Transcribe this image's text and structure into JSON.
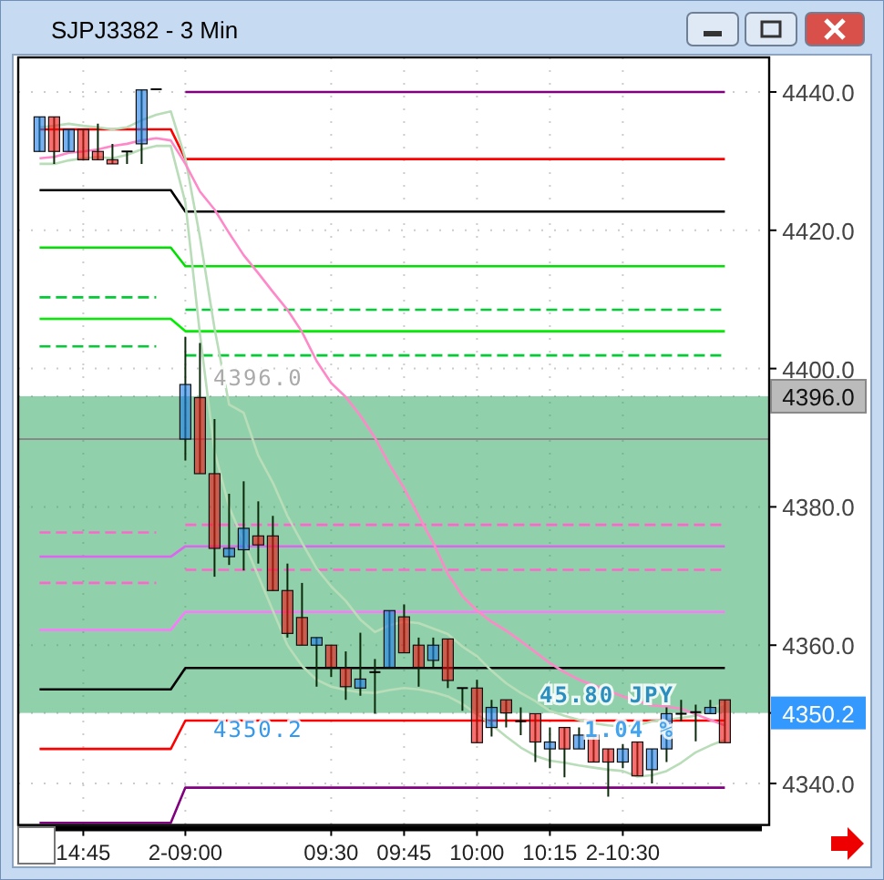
{
  "chart_data": {
    "type": "candlestick",
    "title": "SJPJ3382 - 3 Min",
    "categories": [
      null,
      null,
      null,
      "14:45",
      null,
      null,
      null,
      null,
      null,
      null,
      "2-09:00",
      null,
      null,
      null,
      null,
      null,
      null,
      null,
      null,
      null,
      "09:30",
      null,
      null,
      null,
      null,
      "09:45",
      null,
      null,
      null,
      null,
      "10:00",
      null,
      null,
      null,
      null,
      "10:15",
      null,
      null,
      null,
      null,
      "2-10:30",
      null,
      null,
      null,
      null,
      null,
      null,
      null
    ],
    "ohlc": [
      [
        4431.4,
        4436.4,
        4431.4,
        4436.4
      ],
      [
        4436.4,
        4436.4,
        4429.6,
        4431.4
      ],
      [
        4431.4,
        4434.6,
        4431.4,
        4434.6
      ],
      [
        4434.6,
        4434.6,
        4430.2,
        4430.2
      ],
      [
        4431.4,
        4435.4,
        4430.2,
        4430.2
      ],
      [
        4430.2,
        4432.5,
        4429.6,
        4429.6
      ],
      [
        4431.4,
        4431.4,
        4429.6,
        4431.4
      ],
      [
        4432.5,
        4440.3,
        4429.6,
        4440.3
      ],
      [
        4440.4,
        4440.4,
        4440.4,
        4440.4
      ],
      null,
      [
        4389.8,
        4404.6,
        4386.7,
        4397.7
      ],
      [
        4395.8,
        4403.7,
        4384.8,
        4384.8
      ],
      [
        4384.8,
        4392.7,
        4369.9,
        4374.0
      ],
      [
        4372.8,
        4381.9,
        4371.6,
        4374.0
      ],
      [
        4373.8,
        4383.7,
        4370.8,
        4376.9
      ],
      [
        4375.8,
        4380.8,
        4371.8,
        4374.5
      ],
      [
        4375.8,
        4378.7,
        4367.9,
        4367.9
      ],
      [
        4367.9,
        4371.8,
        4361.1,
        4361.7
      ],
      [
        4364.0,
        4369.0,
        4360.0,
        4360.0
      ],
      [
        4360.0,
        4361.1,
        4354.0,
        4361.1
      ],
      [
        4360.0,
        4360.0,
        4355.4,
        4356.8
      ],
      [
        4356.7,
        4359.1,
        4352.1,
        4354.0
      ],
      [
        4353.8,
        4361.8,
        4352.7,
        4355.1
      ],
      [
        4356.1,
        4358.0,
        4350.1,
        4356.1
      ],
      [
        4356.8,
        4365.0,
        4356.8,
        4365.0
      ],
      [
        4364.1,
        4365.9,
        4358.9,
        4358.9
      ],
      [
        4360.0,
        4361.1,
        4354.0,
        4356.8
      ],
      [
        4357.8,
        4361.1,
        4356.8,
        4360.0
      ],
      [
        4360.9,
        4360.9,
        4353.8,
        4354.9
      ],
      [
        4353.8,
        4353.8,
        4350.5,
        4353.8
      ],
      [
        4353.8,
        4355.0,
        4345.9,
        4345.9
      ],
      [
        4348.1,
        4352.1,
        4346.8,
        4351.0
      ],
      [
        4352.1,
        4352.1,
        4348.1,
        4350.2
      ],
      [
        4349.0,
        4351.0,
        4347.0,
        4349.0
      ],
      [
        4350.1,
        4350.1,
        4343.1,
        4346.0
      ],
      [
        4345.0,
        4348.1,
        4342.2,
        4346.0
      ],
      [
        4348.1,
        4348.1,
        4340.9,
        4345.0
      ],
      [
        4345.0,
        4348.1,
        4345.0,
        4347.0
      ],
      [
        4347.0,
        4347.0,
        4343.1,
        4343.1
      ],
      [
        4345.0,
        4345.0,
        4338.1,
        4343.1
      ],
      [
        4343.1,
        4345.7,
        4342.2,
        4345.0
      ],
      [
        4346.0,
        4346.0,
        4341.1,
        4341.1
      ],
      [
        4342.0,
        4345.0,
        4340.0,
        4345.0
      ],
      [
        4345.0,
        4351.0,
        4343.1,
        4350.1
      ],
      [
        4350.1,
        4352.1,
        4349.0,
        4350.1
      ],
      [
        4350.3,
        4351.4,
        4346.1,
        4350.3
      ],
      [
        4350.1,
        4352.1,
        4350.1,
        4351.0
      ],
      [
        4352.1,
        4352.1,
        4345.9,
        4345.9
      ]
    ],
    "series": [
      {
        "type": "line",
        "color": "#800080",
        "values": [
          null,
          null,
          null,
          null,
          null,
          null,
          null,
          null,
          null,
          null,
          4440.0,
          4440.0,
          4440.0,
          4440.0,
          4440.0,
          4440.0,
          4440.0,
          4440.0,
          4440.0,
          4440.0,
          4440.0,
          4440.0,
          4440.0,
          4440.0,
          4440.0,
          4440.0,
          4440.0,
          4440.0,
          4440.0,
          4440.0,
          4440.0,
          4440.0,
          4440.0,
          4440.0,
          4440.0,
          4440.0,
          4440.0,
          4440.0,
          4440.0,
          4440.0,
          4440.0,
          4440.0,
          4440.0,
          4440.0,
          4440.0,
          4440.0,
          4440.0,
          4440.0
        ]
      },
      {
        "type": "line",
        "color": "#ff0000",
        "values": [
          4434.6,
          4434.6,
          4434.6,
          4434.6,
          4434.6,
          4434.6,
          4434.6,
          4434.6,
          4434.6,
          4434.6,
          4430.3,
          4430.3,
          4430.3,
          4430.3,
          4430.3,
          4430.3,
          4430.3,
          4430.3,
          4430.3,
          4430.3,
          4430.3,
          4430.3,
          4430.3,
          4430.3,
          4430.3,
          4430.3,
          4430.3,
          4430.3,
          4430.3,
          4430.3,
          4430.3,
          4430.3,
          4430.3,
          4430.3,
          4430.3,
          4430.3,
          4430.3,
          4430.3,
          4430.3,
          4430.3,
          4430.3,
          4430.3,
          4430.3,
          4430.3,
          4430.3,
          4430.3,
          4430.3,
          4430.3
        ]
      },
      {
        "type": "line",
        "color": "#000000",
        "values": [
          4425.8,
          4425.8,
          4425.8,
          4425.8,
          4425.8,
          4425.8,
          4425.8,
          4425.8,
          4425.8,
          4425.8,
          4422.7,
          4422.7,
          4422.7,
          4422.7,
          4422.7,
          4422.7,
          4422.7,
          4422.7,
          4422.7,
          4422.7,
          4422.7,
          4422.7,
          4422.7,
          4422.7,
          4422.7,
          4422.7,
          4422.7,
          4422.7,
          4422.7,
          4422.7,
          4422.7,
          4422.7,
          4422.7,
          4422.7,
          4422.7,
          4422.7,
          4422.7,
          4422.7,
          4422.7,
          4422.7,
          4422.7,
          4422.7,
          4422.7,
          4422.7,
          4422.7,
          4422.7,
          4422.7,
          4422.7
        ]
      },
      {
        "type": "line",
        "color": "#00e000",
        "values": [
          4417.5,
          4417.5,
          4417.5,
          4417.5,
          4417.5,
          4417.5,
          4417.5,
          4417.5,
          4417.5,
          4417.5,
          4414.8,
          4414.8,
          4414.8,
          4414.8,
          4414.8,
          4414.8,
          4414.8,
          4414.8,
          4414.8,
          4414.8,
          4414.8,
          4414.8,
          4414.8,
          4414.8,
          4414.8,
          4414.8,
          4414.8,
          4414.8,
          4414.8,
          4414.8,
          4414.8,
          4414.8,
          4414.8,
          4414.8,
          4414.8,
          4414.8,
          4414.8,
          4414.8,
          4414.8,
          4414.8,
          4414.8,
          4414.8,
          4414.8,
          4414.8,
          4414.8,
          4414.8,
          4414.8,
          4414.8
        ]
      },
      {
        "type": "line",
        "color": "#00cc33",
        "line_style": "dashed",
        "values": [
          4410.3,
          4410.3,
          4410.3,
          4410.3,
          4410.3,
          4410.3,
          4410.3,
          4410.3,
          4410.3,
          null,
          4408.5,
          4408.5,
          4408.5,
          4408.5,
          4408.5,
          4408.5,
          4408.5,
          4408.5,
          4408.5,
          4408.5,
          4408.5,
          4408.5,
          4408.5,
          4408.5,
          4408.5,
          4408.5,
          4408.5,
          4408.5,
          4408.5,
          4408.5,
          4408.5,
          4408.5,
          4408.5,
          4408.5,
          4408.5,
          4408.5,
          4408.5,
          4408.5,
          4408.5,
          4408.5,
          4408.5,
          4408.5,
          4408.5,
          4408.5,
          4408.5,
          4408.5,
          4408.5,
          4408.5
        ]
      },
      {
        "type": "line",
        "color": "#00ee00",
        "values": [
          4407.2,
          4407.2,
          4407.2,
          4407.2,
          4407.2,
          4407.2,
          4407.2,
          4407.2,
          4407.2,
          4407.2,
          4405.4,
          4405.4,
          4405.4,
          4405.4,
          4405.4,
          4405.4,
          4405.4,
          4405.4,
          4405.4,
          4405.4,
          4405.4,
          4405.4,
          4405.4,
          4405.4,
          4405.4,
          4405.4,
          4405.4,
          4405.4,
          4405.4,
          4405.4,
          4405.4,
          4405.4,
          4405.4,
          4405.4,
          4405.4,
          4405.4,
          4405.4,
          4405.4,
          4405.4,
          4405.4,
          4405.4,
          4405.4,
          4405.4,
          4405.4,
          4405.4,
          4405.4,
          4405.4,
          4405.4
        ]
      },
      {
        "type": "line",
        "color": "#00cc33",
        "line_style": "dashed",
        "values": [
          4403.2,
          4403.2,
          4403.2,
          4403.2,
          4403.2,
          4403.2,
          4403.2,
          4403.2,
          4403.2,
          null,
          4401.9,
          4401.9,
          4401.9,
          4401.9,
          4401.9,
          4401.9,
          4401.9,
          4401.9,
          4401.9,
          4401.9,
          4401.9,
          4401.9,
          4401.9,
          4401.9,
          4401.9,
          4401.9,
          4401.9,
          4401.9,
          4401.9,
          4401.9,
          4401.9,
          4401.9,
          4401.9,
          4401.9,
          4401.9,
          4401.9,
          4401.9,
          4401.9,
          4401.9,
          4401.9,
          4401.9,
          4401.9,
          4401.9,
          4401.9,
          4401.9,
          4401.9,
          4401.9,
          4401.9
        ]
      },
      {
        "type": "line",
        "color": "#ff66cc",
        "line_style": "dashed",
        "values": [
          4376.3,
          4376.3,
          4376.3,
          4376.3,
          4376.3,
          4376.3,
          4376.3,
          4376.3,
          4376.3,
          null,
          4377.4,
          4377.4,
          4377.4,
          4377.4,
          4377.4,
          4377.4,
          4377.4,
          4377.4,
          4377.4,
          4377.4,
          4377.4,
          4377.4,
          4377.4,
          4377.4,
          4377.4,
          4377.4,
          4377.4,
          4377.4,
          4377.4,
          4377.4,
          4377.4,
          4377.4,
          4377.4,
          4377.4,
          4377.4,
          4377.4,
          4377.4,
          4377.4,
          4377.4,
          4377.4,
          4377.4,
          4377.4,
          4377.4,
          4377.4,
          4377.4,
          4377.4,
          4377.4,
          4377.4
        ]
      },
      {
        "type": "line",
        "color": "#dd66ee",
        "values": [
          4372.8,
          4372.8,
          4372.8,
          4372.8,
          4372.8,
          4372.8,
          4372.8,
          4372.8,
          4372.8,
          4372.8,
          4374.3,
          4374.3,
          4374.3,
          4374.3,
          4374.3,
          4374.3,
          4374.3,
          4374.3,
          4374.3,
          4374.3,
          4374.3,
          4374.3,
          4374.3,
          4374.3,
          4374.3,
          4374.3,
          4374.3,
          4374.3,
          4374.3,
          4374.3,
          4374.3,
          4374.3,
          4374.3,
          4374.3,
          4374.3,
          4374.3,
          4374.3,
          4374.3,
          4374.3,
          4374.3,
          4374.3,
          4374.3,
          4374.3,
          4374.3,
          4374.3,
          4374.3,
          4374.3,
          4374.3
        ]
      },
      {
        "type": "line",
        "color": "#ff66cc",
        "line_style": "dashed",
        "values": [
          4369.0,
          4369.0,
          4369.0,
          4369.0,
          4369.0,
          4369.0,
          4369.0,
          4369.0,
          4369.0,
          null,
          4370.9,
          4370.9,
          4370.9,
          4370.9,
          4370.9,
          4370.9,
          4370.9,
          4370.9,
          4370.9,
          4370.9,
          4370.9,
          4370.9,
          4370.9,
          4370.9,
          4370.9,
          4370.9,
          4370.9,
          4370.9,
          4370.9,
          4370.9,
          4370.9,
          4370.9,
          4370.9,
          4370.9,
          4370.9,
          4370.9,
          4370.9,
          4370.9,
          4370.9,
          4370.9,
          4370.9,
          4370.9,
          4370.9,
          4370.9,
          4370.9,
          4370.9,
          4370.9,
          4370.9
        ]
      },
      {
        "type": "line",
        "color": "#ff77ff",
        "values": [
          4362.2,
          4362.2,
          4362.2,
          4362.2,
          4362.2,
          4362.2,
          4362.2,
          4362.2,
          4362.2,
          4362.2,
          4364.8,
          4364.8,
          4364.8,
          4364.8,
          4364.8,
          4364.8,
          4364.8,
          4364.8,
          4364.8,
          4364.8,
          4364.8,
          4364.8,
          4364.8,
          4364.8,
          4364.8,
          4364.8,
          4364.8,
          4364.8,
          4364.8,
          4364.8,
          4364.8,
          4364.8,
          4364.8,
          4364.8,
          4364.8,
          4364.8,
          4364.8,
          4364.8,
          4364.8,
          4364.8,
          4364.8,
          4364.8,
          4364.8,
          4364.8,
          4364.8,
          4364.8,
          4364.8,
          4364.8
        ]
      },
      {
        "type": "line",
        "color": "#000000",
        "values": [
          4353.6,
          4353.6,
          4353.6,
          4353.6,
          4353.6,
          4353.6,
          4353.6,
          4353.6,
          4353.6,
          4353.6,
          4356.7,
          4356.7,
          4356.7,
          4356.7,
          4356.7,
          4356.7,
          4356.7,
          4356.7,
          4356.7,
          4356.7,
          4356.7,
          4356.7,
          4356.7,
          4356.7,
          4356.7,
          4356.7,
          4356.7,
          4356.7,
          4356.7,
          4356.7,
          4356.7,
          4356.7,
          4356.7,
          4356.7,
          4356.7,
          4356.7,
          4356.7,
          4356.7,
          4356.7,
          4356.7,
          4356.7,
          4356.7,
          4356.7,
          4356.7,
          4356.7,
          4356.7,
          4356.7,
          4356.7
        ]
      },
      {
        "type": "line",
        "color": "#ff0000",
        "values": [
          4345.0,
          4345.0,
          4345.0,
          4345.0,
          4345.0,
          4345.0,
          4345.0,
          4345.0,
          4345.0,
          4345.0,
          4349.1,
          4349.1,
          4349.1,
          4349.1,
          4349.1,
          4349.1,
          4349.1,
          4349.1,
          4349.1,
          4349.1,
          4349.1,
          4349.1,
          4349.1,
          4349.1,
          4349.1,
          4349.1,
          4349.1,
          4349.1,
          4349.1,
          4349.1,
          4349.1,
          4349.1,
          4349.1,
          4349.1,
          4349.1,
          4349.1,
          4349.1,
          4349.1,
          4349.1,
          4349.1,
          4349.1,
          4349.1,
          4349.1,
          4349.1,
          4349.1,
          4349.1,
          4349.1,
          4349.1
        ]
      },
      {
        "type": "line",
        "color": "#800080",
        "values": [
          4334.3,
          4334.3,
          4334.3,
          4334.3,
          4334.3,
          4334.3,
          4334.3,
          4334.3,
          4334.3,
          4334.3,
          4339.4,
          4339.4,
          4339.4,
          4339.4,
          4339.4,
          4339.4,
          4339.4,
          4339.4,
          4339.4,
          4339.4,
          4339.4,
          4339.4,
          4339.4,
          4339.4,
          4339.4,
          4339.4,
          4339.4,
          4339.4,
          4339.4,
          4339.4,
          4339.4,
          4339.4,
          4339.4,
          4339.4,
          4339.4,
          4339.4,
          4339.4,
          4339.4,
          4339.4,
          4339.4,
          4339.4,
          4339.4,
          4339.4,
          4339.4,
          4339.4,
          4339.4,
          4339.4,
          4339.4
        ]
      },
      {
        "type": "line",
        "color": "#b8ddb8",
        "values": [
          4434.9,
          4435.1,
          4435.4,
          4435.1,
          4434.9,
          4434.6,
          4434.9,
          4435.9,
          4436.7,
          4437.2,
          4430.4,
          4419.0,
          4405.8,
          4394.8,
          4393.6,
          4387.4,
          4383.5,
          4378.7,
          4374.8,
          4371.1,
          4368.5,
          4366.4,
          4363.7,
          4361.9,
          4362.9,
          4363.4,
          4363.2,
          4362.4,
          4361.6,
          4359.8,
          4358.4,
          4356.3,
          4354.5,
          4353.1,
          4351.9,
          4350.5,
          4349.8,
          4349.2,
          4348.7,
          4348.4,
          4348.2,
          4348.4,
          4349.0,
          4349.2,
          4349.5,
          4349.8,
          4350.8,
          4351.6
        ]
      },
      {
        "type": "line",
        "color": "#b8ddb8",
        "values": [
          4429.6,
          4429.6,
          4430.1,
          4430.4,
          4430.6,
          4430.4,
          4430.9,
          4431.7,
          4432.2,
          4432.2,
          4424.0,
          4405.0,
          4388.0,
          4380.0,
          4375.0,
          4370.0,
          4365.0,
          4360.0,
          4357.0,
          4355.0,
          4354.0,
          4353.5,
          4353.2,
          4353.1,
          4353.5,
          4353.8,
          4353.6,
          4353.2,
          4352.6,
          4351.5,
          4350.0,
          4348.5,
          4346.8,
          4345.2,
          4344.0,
          4343.3,
          4343.0,
          4342.6,
          4342.3,
          4342.0,
          4341.8,
          4341.0,
          4341.2,
          4341.8,
          4343.0,
          4344.5,
          4345.5,
          4346.3
        ]
      },
      {
        "type": "line",
        "color": "#ff88c8",
        "values": [
          4430.4,
          4430.6,
          4431.2,
          4431.4,
          4431.7,
          4432.2,
          4432.5,
          4433.0,
          4433.3,
          4433.0,
          4429.6,
          4425.6,
          4423.0,
          4419.6,
          4416.4,
          4413.8,
          4411.1,
          4408.5,
          4405.3,
          4401.1,
          4397.9,
          4395.9,
          4393.2,
          4390.0,
          4386.1,
          4382.7,
          4378.7,
          4374.8,
          4370.3,
          4367.1,
          4365.0,
          4363.4,
          4362.1,
          4360.6,
          4359.0,
          4357.4,
          4356.1,
          4355.0,
          4354.2,
          4353.4,
          4352.6,
          4351.9,
          4351.3,
          4351.1,
          4350.8,
          4350.0,
          4349.2,
          4348.4
        ]
      }
    ],
    "ylim": [
      4334,
      4445
    ],
    "yticks": [
      {
        "value": 4340,
        "label": "4340.0"
      },
      {
        "value": 4350.2,
        "label": "4350.2"
      },
      {
        "value": 4360,
        "label": "4360.0"
      },
      {
        "value": 4380,
        "label": "4380.0"
      },
      {
        "value": 4396,
        "label": "4396.0"
      },
      {
        "value": 4400,
        "label": "4400.0"
      },
      {
        "value": 4420,
        "label": "4420.0"
      },
      {
        "value": 4440,
        "label": "4440.0"
      }
    ],
    "grid": true,
    "ref_lines": [
      {
        "axis": "y",
        "value": 4389.8,
        "color": "#888888"
      }
    ],
    "bands": [
      {
        "axis": "y",
        "from": 4350.2,
        "to": 4396,
        "color": "#22a35a"
      }
    ],
    "annotations": [
      {
        "text": "4396.0",
        "y": 4396
      },
      {
        "text": "4350.2",
        "y": 4350.2
      },
      {
        "text": "45.80 JPY",
        "y": 4350.2
      },
      {
        "text": "1.04 %",
        "y": 4350.2
      }
    ]
  }
}
